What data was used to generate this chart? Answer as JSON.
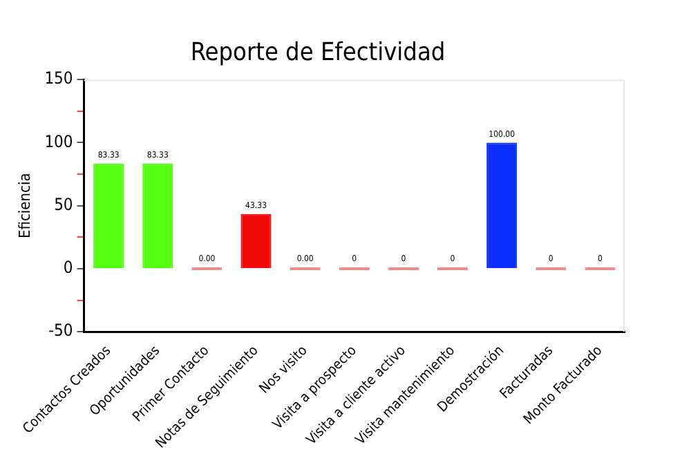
{
  "chart_data": {
    "type": "bar",
    "title": "Reporte de Efectividad",
    "ylabel": "Eficiencia",
    "categories": [
      "Contactos Creados",
      "Oportunidades",
      "Primer Contacto",
      "Notas de Seguimiento",
      "Nos visito",
      "Visita a prospecto",
      "Visita a cliente activo",
      "Visita mantenimiento",
      "Demostración",
      "Facturadas",
      "Monto Facturado"
    ],
    "values": [
      83.33,
      83.33,
      0,
      43.33,
      0,
      0,
      0,
      0,
      100,
      0,
      0
    ],
    "value_labels": [
      "83.33",
      "83.33",
      "0.00",
      "43.33",
      "0.00",
      "0",
      "0",
      "0",
      "100.00",
      "0",
      "0"
    ],
    "colors": [
      "#55ff11",
      "#55ff11",
      "#f48a8a",
      "#f20a0a",
      "#f48a8a",
      "#f48a8a",
      "#f48a8a",
      "#f48a8a",
      "#0a2eff",
      "#f48a8a",
      "#f48a8a"
    ],
    "ylim": [
      -50,
      150
    ],
    "yticks": [
      -50,
      {
        "value": -25,
        "label": null
      },
      0,
      {
        "value": 25,
        "label": null
      },
      50,
      {
        "value": 75,
        "label": null
      },
      100,
      {
        "value": 125,
        "label": null
      },
      150
    ],
    "grid": false,
    "legend": false
  }
}
